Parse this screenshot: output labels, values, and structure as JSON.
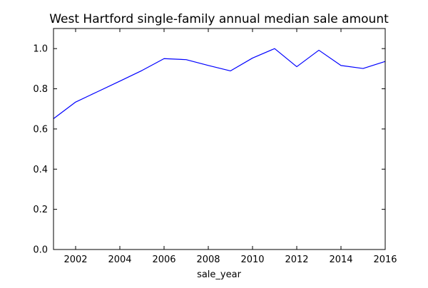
{
  "chart_data": {
    "type": "line",
    "title": "West Hartford single-family annual median sale amount",
    "xlabel": "sale_year",
    "ylabel": "",
    "xlim": [
      2001,
      2016
    ],
    "ylim": [
      0.0,
      1.1
    ],
    "xticks": [
      2002,
      2004,
      2006,
      2008,
      2010,
      2012,
      2014,
      2016
    ],
    "xtick_labels": [
      "2002",
      "2004",
      "2006",
      "2008",
      "2010",
      "2012",
      "2014",
      "2016"
    ],
    "yticks": [
      0.0,
      0.2,
      0.4,
      0.6,
      0.8,
      1.0
    ],
    "ytick_labels": [
      "0.0",
      "0.2",
      "0.4",
      "0.6",
      "0.8",
      "1.0"
    ],
    "grid": false,
    "legend": "none",
    "x": [
      2001,
      2002,
      2003,
      2004,
      2005,
      2006,
      2007,
      2008,
      2009,
      2010,
      2011,
      2012,
      2013,
      2014,
      2015,
      2016
    ],
    "series": [
      {
        "color": "#0000ff",
        "values": [
          0.651,
          0.734,
          0.786,
          0.838,
          0.891,
          0.95,
          0.945,
          0.916,
          0.889,
          0.953,
          1.0,
          0.91,
          0.992,
          0.916,
          0.901,
          0.936
        ]
      }
    ]
  }
}
